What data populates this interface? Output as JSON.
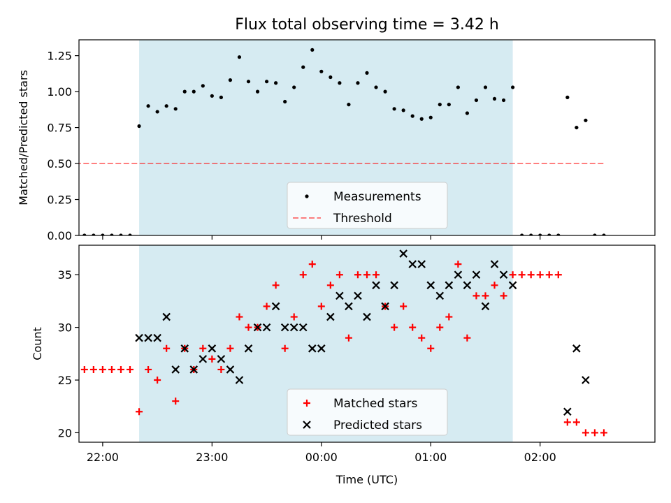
{
  "title": "Flux total observing time = 3.42 h",
  "xlabel": "Time (UTC)",
  "colors": {
    "band": "#add8e6",
    "threshold": "#ff0000",
    "measurement": "#000000",
    "matched": "#ff0000",
    "predicted": "#000000"
  },
  "chart_data": [
    {
      "type": "scatter",
      "ylabel": "Matched/Predicted stars",
      "xlim": [
        "21:47",
        "03:03"
      ],
      "ylim": [
        0,
        1.36
      ],
      "yticks": [
        "0.00",
        "0.25",
        "0.50",
        "0.75",
        "1.00",
        "1.25"
      ],
      "shaded_interval": [
        "22:20",
        "01:45"
      ],
      "legend": {
        "position": "lower-center",
        "entries": [
          "Measurements",
          "Threshold"
        ]
      },
      "threshold": {
        "name": "Threshold",
        "value": 0.5,
        "x_range": [
          "21:45",
          "02:35"
        ],
        "style": "dashed"
      },
      "series": [
        {
          "name": "Measurements",
          "points": [
            [
              "21:45",
              0
            ],
            [
              "21:50",
              0
            ],
            [
              "21:55",
              0
            ],
            [
              "22:00",
              0
            ],
            [
              "22:05",
              0
            ],
            [
              "22:10",
              0
            ],
            [
              "22:15",
              0
            ],
            [
              "22:20",
              0.76
            ],
            [
              "22:25",
              0.9
            ],
            [
              "22:30",
              0.86
            ],
            [
              "22:35",
              0.9
            ],
            [
              "22:40",
              0.88
            ],
            [
              "22:45",
              1.0
            ],
            [
              "22:50",
              1.0
            ],
            [
              "22:55",
              1.04
            ],
            [
              "23:00",
              0.97
            ],
            [
              "23:05",
              0.96
            ],
            [
              "23:10",
              1.08
            ],
            [
              "23:15",
              1.24
            ],
            [
              "23:20",
              1.07
            ],
            [
              "23:25",
              1.0
            ],
            [
              "23:30",
              1.07
            ],
            [
              "23:35",
              1.06
            ],
            [
              "23:40",
              0.93
            ],
            [
              "23:45",
              1.03
            ],
            [
              "23:50",
              1.17
            ],
            [
              "23:55",
              1.29
            ],
            [
              "00:00",
              1.14
            ],
            [
              "00:05",
              1.1
            ],
            [
              "00:10",
              1.06
            ],
            [
              "00:15",
              0.91
            ],
            [
              "00:20",
              1.06
            ],
            [
              "00:25",
              1.13
            ],
            [
              "00:30",
              1.03
            ],
            [
              "00:35",
              1.0
            ],
            [
              "00:40",
              0.88
            ],
            [
              "00:45",
              0.87
            ],
            [
              "00:50",
              0.83
            ],
            [
              "00:55",
              0.81
            ],
            [
              "01:00",
              0.82
            ],
            [
              "01:05",
              0.91
            ],
            [
              "01:10",
              0.91
            ],
            [
              "01:15",
              1.03
            ],
            [
              "01:20",
              0.85
            ],
            [
              "01:25",
              0.94
            ],
            [
              "01:30",
              1.03
            ],
            [
              "01:35",
              0.95
            ],
            [
              "01:40",
              0.94
            ],
            [
              "01:45",
              1.03
            ],
            [
              "01:50",
              0
            ],
            [
              "01:55",
              0
            ],
            [
              "02:00",
              0
            ],
            [
              "02:05",
              0
            ],
            [
              "02:10",
              0
            ],
            [
              "02:15",
              0.96
            ],
            [
              "02:20",
              0.75
            ],
            [
              "02:25",
              0.8
            ],
            [
              "02:30",
              0
            ],
            [
              "02:35",
              0
            ]
          ]
        }
      ]
    },
    {
      "type": "scatter",
      "ylabel": "Count",
      "xlim": [
        "21:47",
        "03:03"
      ],
      "ylim": [
        19.1,
        37.8
      ],
      "yticks": [
        "20",
        "25",
        "30",
        "35"
      ],
      "xticks": [
        "22:00",
        "23:00",
        "00:00",
        "01:00",
        "02:00"
      ],
      "shaded_interval": [
        "22:20",
        "01:45"
      ],
      "legend": {
        "position": "lower-center",
        "entries": [
          "Matched stars",
          "Predicted stars"
        ]
      },
      "series": [
        {
          "name": "Matched stars",
          "marker": "plus",
          "points": [
            [
              "21:45",
              26
            ],
            [
              "21:50",
              26
            ],
            [
              "21:55",
              26
            ],
            [
              "22:00",
              26
            ],
            [
              "22:05",
              26
            ],
            [
              "22:10",
              26
            ],
            [
              "22:15",
              26
            ],
            [
              "22:20",
              22
            ],
            [
              "22:25",
              26
            ],
            [
              "22:30",
              25
            ],
            [
              "22:35",
              28
            ],
            [
              "22:40",
              23
            ],
            [
              "22:45",
              28
            ],
            [
              "22:50",
              26
            ],
            [
              "22:55",
              28
            ],
            [
              "23:00",
              27
            ],
            [
              "23:05",
              26
            ],
            [
              "23:10",
              28
            ],
            [
              "23:15",
              31
            ],
            [
              "23:20",
              30
            ],
            [
              "23:25",
              30
            ],
            [
              "23:30",
              32
            ],
            [
              "23:35",
              34
            ],
            [
              "23:40",
              28
            ],
            [
              "23:45",
              31
            ],
            [
              "23:50",
              35
            ],
            [
              "23:55",
              36
            ],
            [
              "00:00",
              32
            ],
            [
              "00:05",
              34
            ],
            [
              "00:10",
              35
            ],
            [
              "00:15",
              29
            ],
            [
              "00:20",
              35
            ],
            [
              "00:25",
              35
            ],
            [
              "00:30",
              35
            ],
            [
              "00:35",
              32
            ],
            [
              "00:40",
              30
            ],
            [
              "00:45",
              32
            ],
            [
              "00:50",
              30
            ],
            [
              "00:55",
              29
            ],
            [
              "01:00",
              28
            ],
            [
              "01:05",
              30
            ],
            [
              "01:10",
              31
            ],
            [
              "01:15",
              36
            ],
            [
              "01:20",
              29
            ],
            [
              "01:25",
              33
            ],
            [
              "01:30",
              33
            ],
            [
              "01:35",
              34
            ],
            [
              "01:40",
              33
            ],
            [
              "01:45",
              35
            ],
            [
              "01:50",
              35
            ],
            [
              "01:55",
              35
            ],
            [
              "02:00",
              35
            ],
            [
              "02:05",
              35
            ],
            [
              "02:10",
              35
            ],
            [
              "02:15",
              21
            ],
            [
              "02:20",
              21
            ],
            [
              "02:25",
              20
            ],
            [
              "02:30",
              20
            ],
            [
              "02:35",
              20
            ]
          ]
        },
        {
          "name": "Predicted stars",
          "marker": "x",
          "points": [
            [
              "22:20",
              29
            ],
            [
              "22:25",
              29
            ],
            [
              "22:30",
              29
            ],
            [
              "22:35",
              31
            ],
            [
              "22:40",
              26
            ],
            [
              "22:45",
              28
            ],
            [
              "22:50",
              26
            ],
            [
              "22:55",
              27
            ],
            [
              "23:00",
              28
            ],
            [
              "23:05",
              27
            ],
            [
              "23:10",
              26
            ],
            [
              "23:15",
              25
            ],
            [
              "23:20",
              28
            ],
            [
              "23:25",
              30
            ],
            [
              "23:30",
              30
            ],
            [
              "23:35",
              32
            ],
            [
              "23:40",
              30
            ],
            [
              "23:45",
              30
            ],
            [
              "23:50",
              30
            ],
            [
              "23:55",
              28
            ],
            [
              "00:00",
              28
            ],
            [
              "00:05",
              31
            ],
            [
              "00:10",
              33
            ],
            [
              "00:15",
              32
            ],
            [
              "00:20",
              33
            ],
            [
              "00:25",
              31
            ],
            [
              "00:30",
              34
            ],
            [
              "00:35",
              32
            ],
            [
              "00:40",
              34
            ],
            [
              "00:45",
              37
            ],
            [
              "00:50",
              36
            ],
            [
              "00:55",
              36
            ],
            [
              "01:00",
              34
            ],
            [
              "01:05",
              33
            ],
            [
              "01:10",
              34
            ],
            [
              "01:15",
              35
            ],
            [
              "01:20",
              34
            ],
            [
              "01:25",
              35
            ],
            [
              "01:30",
              32
            ],
            [
              "01:35",
              36
            ],
            [
              "01:40",
              35
            ],
            [
              "01:45",
              34
            ],
            [
              "02:15",
              22
            ],
            [
              "02:20",
              28
            ],
            [
              "02:25",
              25
            ]
          ]
        }
      ]
    }
  ]
}
